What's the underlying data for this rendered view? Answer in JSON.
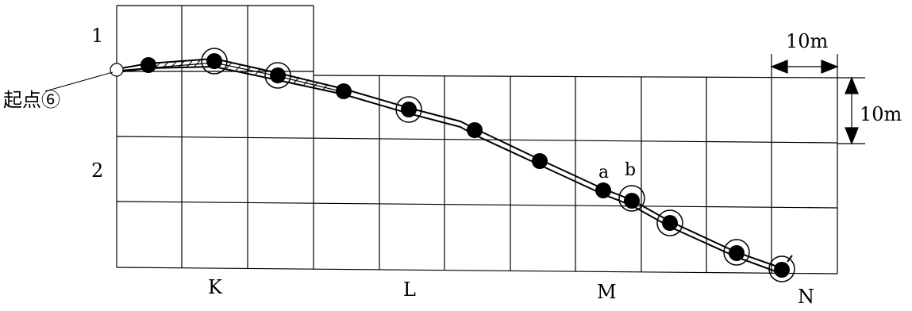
{
  "row_labels": [
    "1",
    "2"
  ],
  "col_labels": [
    "K",
    "L",
    "M",
    "N"
  ],
  "start_label": "起点⑥",
  "scale_horizontal": "10m",
  "scale_vertical": "10m",
  "point_labels": [
    "a",
    "b"
  ],
  "colors": {
    "ink": "#000000",
    "background": "#ffffff"
  }
}
